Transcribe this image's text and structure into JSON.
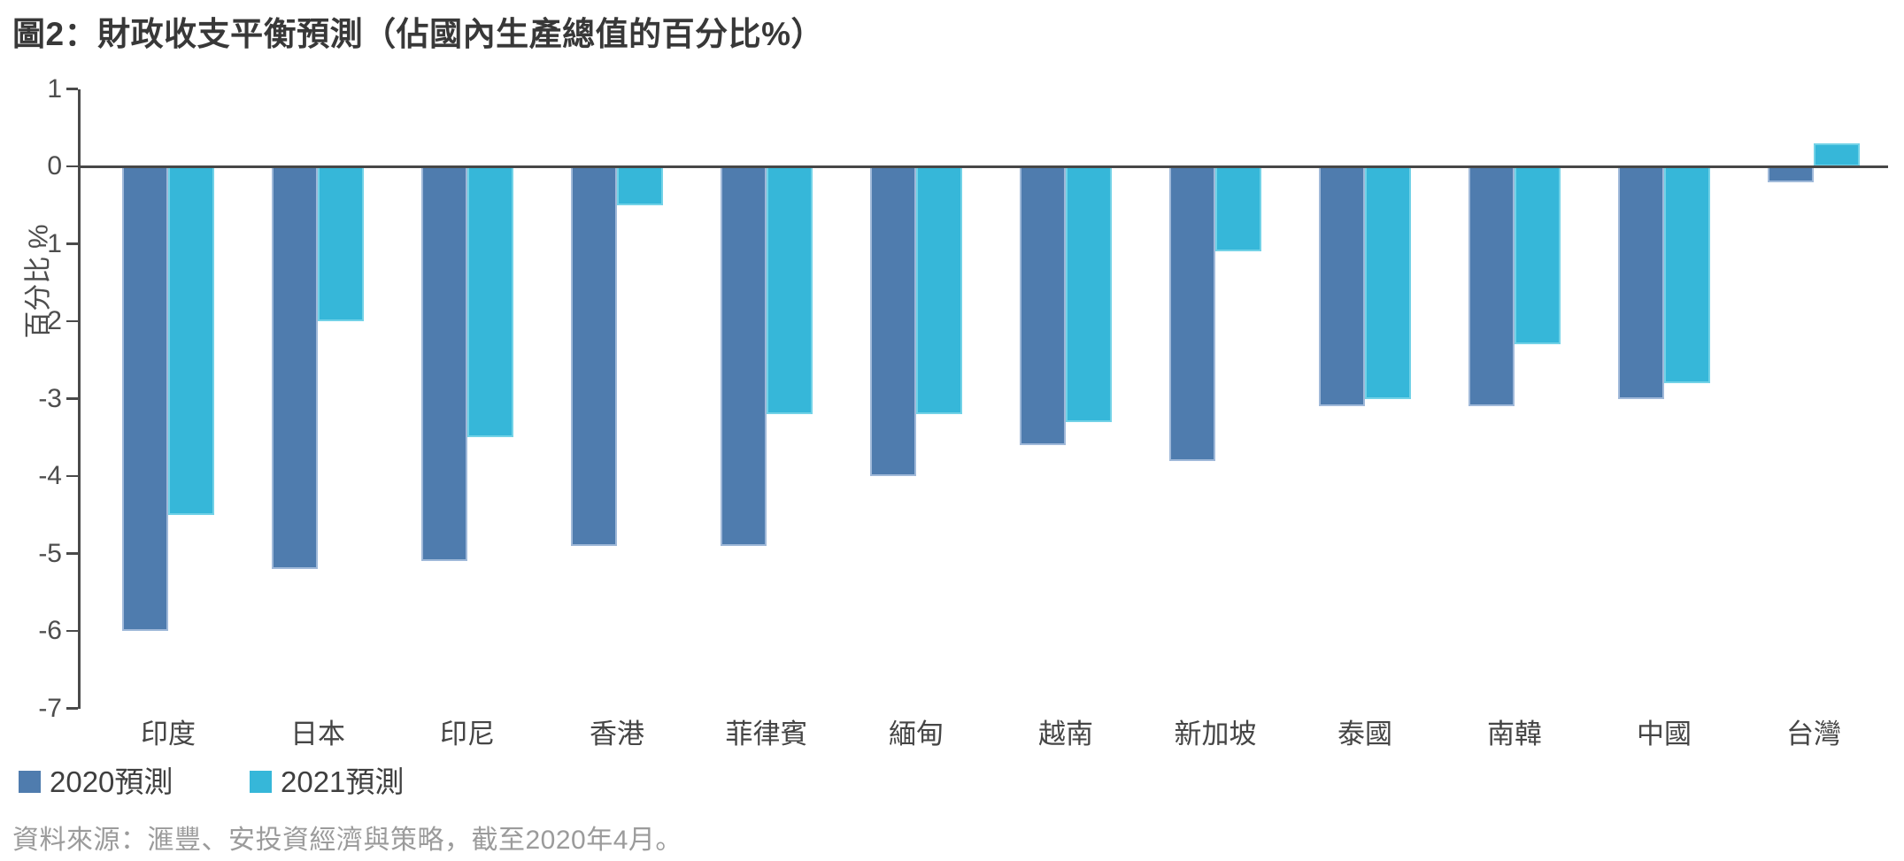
{
  "title": "圖2：財政收支平衡預測（佔國內生產總值的百分比%）",
  "source_note": "資料來源：滙豐、安投資經濟與策略，截至2020年4月。",
  "colors": {
    "series_2020": "#4F7CAE",
    "series_2021": "#36B7D9",
    "axis": "#4A4A4A",
    "label_text": "#454545",
    "source_text": "#9B9B9B"
  },
  "chart_data": {
    "type": "bar",
    "title": "圖2：財政收支平衡預測（佔國內生產總值的百分比%）",
    "xlabel": "",
    "ylabel": "百分比 %",
    "ylim": [
      -7,
      1
    ],
    "yticks": [
      1,
      0,
      -1,
      -2,
      -3,
      -4,
      -5,
      -6,
      -7
    ],
    "grid": false,
    "legend_position": "bottom-left",
    "categories": [
      "印度",
      "日本",
      "印尼",
      "香港",
      "菲律賓",
      "緬甸",
      "越南",
      "新加坡",
      "泰國",
      "南韓",
      "中國",
      "台灣"
    ],
    "series": [
      {
        "name": "2020預測",
        "color": "#4F7CAE",
        "values": [
          -6.0,
          -5.2,
          -5.1,
          -4.9,
          -4.9,
          -4.0,
          -3.6,
          -3.8,
          -3.1,
          -3.1,
          -3.0,
          -0.2
        ]
      },
      {
        "name": "2021預測",
        "color": "#36B7D9",
        "values": [
          -4.5,
          -2.0,
          -3.5,
          -0.5,
          -3.2,
          -3.2,
          -3.3,
          -1.1,
          -3.0,
          -2.3,
          -2.8,
          0.3
        ]
      }
    ]
  }
}
